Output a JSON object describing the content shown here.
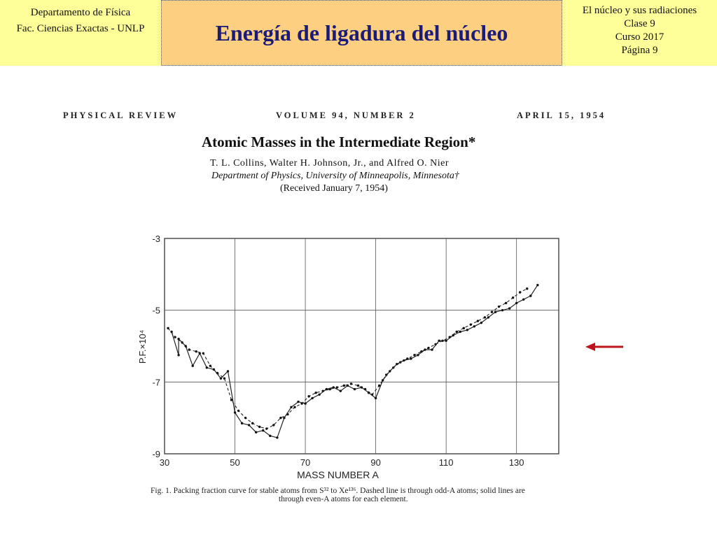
{
  "header": {
    "left_line1": "Departamento de Física",
    "left_line2": "Fac. Ciencias Exactas - UNLP",
    "title": "Energía de ligadura del núcleo",
    "right_line1": "El núcleo y sus radiaciones",
    "right_line2": "Clase 9",
    "right_line3": "Curso 2017",
    "right_line4": "Página 9"
  },
  "paper": {
    "journal": "PHYSICAL REVIEW",
    "volume": "VOLUME 94, NUMBER 2",
    "date": "APRIL 15, 1954",
    "title": "Atomic Masses in the Intermediate Region*",
    "authors": "T. L. Collins, Walter H. Johnson, Jr., and Alfred O. Nier",
    "department": "Department of Physics, University of Minneapolis, Minnesota†",
    "received": "(Received January 7, 1954)"
  },
  "caption_line1": "Fig. 1. Packing fraction curve for stable atoms from S³² to Xe¹³⁶. Dashed line is through odd-A atoms; solid lines are",
  "caption_line2": "through even-A atoms for each element.",
  "colors": {
    "arrow": "#c0141c",
    "header_bg": "#ffff99",
    "title_bg": "#fcd080",
    "title_text": "#1b1b7a"
  },
  "chart_data": {
    "type": "line",
    "xlabel": "MASS NUMBER A",
    "ylabel": "P.F.×10⁴",
    "xlim": [
      30,
      142
    ],
    "ylim": [
      -9,
      -3
    ],
    "x_ticks": [
      30,
      50,
      70,
      90,
      110,
      130
    ],
    "y_ticks": [
      -3,
      -5,
      -7,
      -9
    ],
    "grid": true,
    "series": [
      {
        "values": [
          [
            31,
            -5.5
          ],
          [
            33,
            -5.75
          ],
          [
            35,
            -5.9
          ],
          [
            37,
            -6.1
          ],
          [
            39,
            -6.15
          ],
          [
            41,
            -6.2
          ],
          [
            43,
            -6.55
          ],
          [
            45,
            -6.75
          ],
          [
            47,
            -6.9
          ],
          [
            49,
            -7.5
          ],
          [
            51,
            -7.8
          ],
          [
            53,
            -8.0
          ],
          [
            55,
            -8.15
          ],
          [
            57,
            -8.25
          ],
          [
            59,
            -8.3
          ],
          [
            61,
            -8.2
          ],
          [
            63,
            -8.0
          ],
          [
            65,
            -7.9
          ],
          [
            67,
            -7.7
          ],
          [
            69,
            -7.6
          ],
          [
            71,
            -7.4
          ],
          [
            73,
            -7.3
          ],
          [
            75,
            -7.25
          ],
          [
            77,
            -7.2
          ],
          [
            79,
            -7.15
          ],
          [
            81,
            -7.1
          ],
          [
            83,
            -7.05
          ],
          [
            85,
            -7.1
          ],
          [
            87,
            -7.2
          ],
          [
            89,
            -7.35
          ],
          [
            91,
            -7.1
          ],
          [
            93,
            -6.8
          ],
          [
            95,
            -6.6
          ],
          [
            97,
            -6.45
          ],
          [
            99,
            -6.35
          ],
          [
            101,
            -6.25
          ],
          [
            103,
            -6.15
          ],
          [
            105,
            -6.05
          ],
          [
            107,
            -5.95
          ],
          [
            109,
            -5.85
          ],
          [
            111,
            -5.75
          ],
          [
            113,
            -5.6
          ],
          [
            115,
            -5.5
          ],
          [
            117,
            -5.4
          ],
          [
            119,
            -5.3
          ],
          [
            121,
            -5.2
          ],
          [
            123,
            -5.05
          ],
          [
            125,
            -4.9
          ],
          [
            127,
            -4.8
          ],
          [
            129,
            -4.65
          ],
          [
            131,
            -4.5
          ],
          [
            133,
            -4.4
          ]
        ]
      },
      {
        "values": [
          [
            32,
            -5.6
          ],
          [
            34,
            -6.25
          ],
          [
            34,
            -5.8
          ],
          [
            36,
            -6.0
          ],
          [
            38,
            -6.55
          ],
          [
            40,
            -6.2
          ],
          [
            42,
            -6.6
          ],
          [
            44,
            -6.65
          ],
          [
            46,
            -6.9
          ],
          [
            48,
            -6.7
          ],
          [
            50,
            -7.85
          ],
          [
            52,
            -8.15
          ],
          [
            54,
            -8.2
          ],
          [
            56,
            -8.4
          ],
          [
            58,
            -8.35
          ],
          [
            60,
            -8.5
          ],
          [
            62,
            -8.55
          ],
          [
            64,
            -8.0
          ],
          [
            66,
            -7.7
          ],
          [
            68,
            -7.55
          ],
          [
            70,
            -7.6
          ],
          [
            72,
            -7.45
          ],
          [
            74,
            -7.35
          ],
          [
            76,
            -7.2
          ],
          [
            78,
            -7.15
          ],
          [
            80,
            -7.25
          ],
          [
            82,
            -7.1
          ],
          [
            84,
            -7.2
          ],
          [
            86,
            -7.15
          ],
          [
            88,
            -7.3
          ],
          [
            90,
            -7.45
          ],
          [
            92,
            -6.95
          ],
          [
            94,
            -6.7
          ],
          [
            96,
            -6.5
          ],
          [
            98,
            -6.4
          ],
          [
            100,
            -6.35
          ],
          [
            102,
            -6.25
          ],
          [
            104,
            -6.1
          ],
          [
            106,
            -6.1
          ],
          [
            108,
            -5.85
          ],
          [
            110,
            -5.85
          ],
          [
            112,
            -5.7
          ],
          [
            114,
            -5.6
          ],
          [
            116,
            -5.55
          ],
          [
            118,
            -5.45
          ],
          [
            120,
            -5.35
          ],
          [
            122,
            -5.2
          ],
          [
            124,
            -5.05
          ],
          [
            126,
            -5.0
          ],
          [
            128,
            -4.95
          ],
          [
            130,
            -4.8
          ],
          [
            132,
            -4.7
          ],
          [
            134,
            -4.6
          ],
          [
            136,
            -4.3
          ]
        ]
      }
    ]
  }
}
